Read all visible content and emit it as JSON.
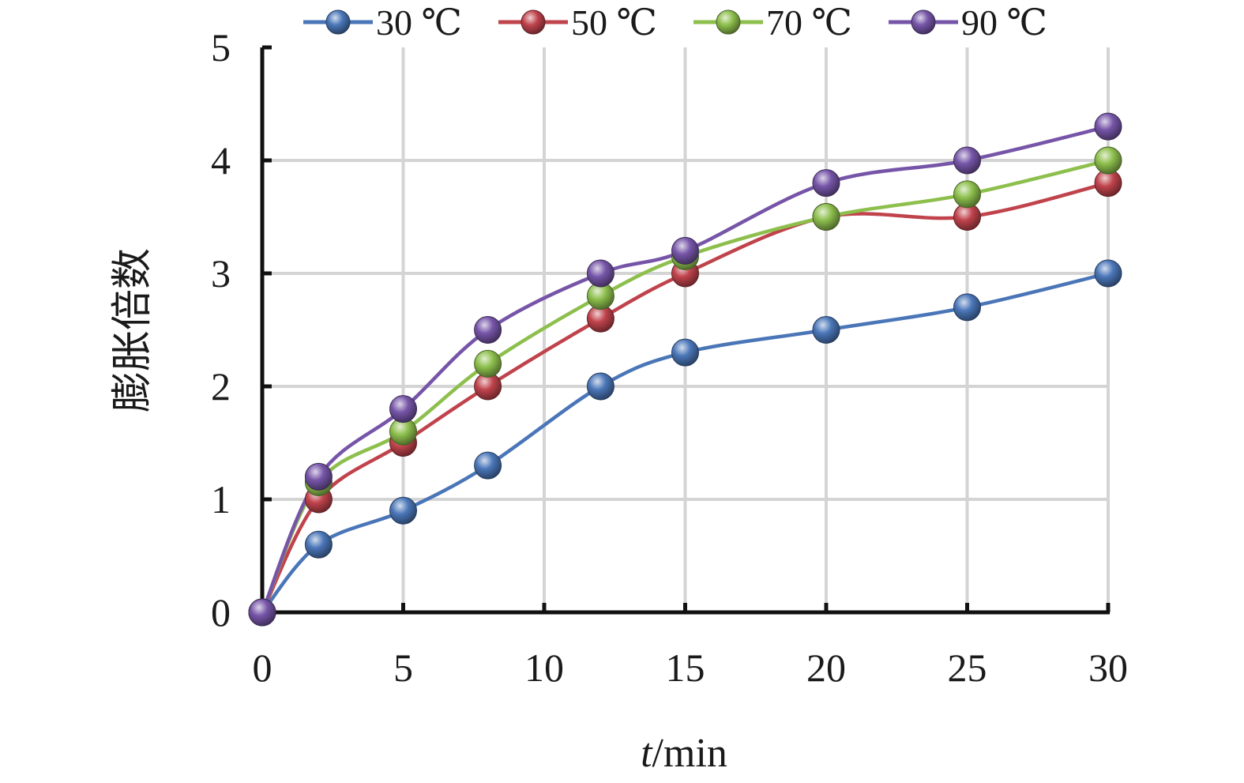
{
  "chart_data": {
    "type": "line",
    "title": "",
    "xlabel": {
      "italic": "t",
      "rest": "/min"
    },
    "ylabel": "膨胀倍数",
    "xlim": [
      0,
      30
    ],
    "ylim": [
      0,
      5
    ],
    "xticks": [
      0,
      5,
      10,
      15,
      20,
      25,
      30
    ],
    "yticks": [
      0,
      1,
      2,
      3,
      4,
      5
    ],
    "grid": true,
    "smooth": true,
    "legend_position": "top",
    "x": [
      0,
      2,
      5,
      8,
      12,
      15,
      20,
      25,
      30
    ],
    "series": [
      {
        "name": "30 ℃",
        "color": "#4a76b8",
        "values": [
          0,
          0.6,
          0.9,
          1.3,
          2.0,
          2.3,
          2.5,
          2.7,
          3.0
        ]
      },
      {
        "name": "50 ℃",
        "color": "#c0434c",
        "values": [
          0,
          1.0,
          1.5,
          2.0,
          2.6,
          3.0,
          3.5,
          3.5,
          3.8
        ]
      },
      {
        "name": "70 ℃",
        "color": "#8dbf4d",
        "values": [
          0,
          1.15,
          1.6,
          2.2,
          2.8,
          3.15,
          3.5,
          3.7,
          4.0
        ]
      },
      {
        "name": "90 ℃",
        "color": "#7655a8",
        "values": [
          0,
          1.2,
          1.8,
          2.5,
          3.0,
          3.2,
          3.8,
          4.0,
          4.3
        ]
      }
    ]
  }
}
